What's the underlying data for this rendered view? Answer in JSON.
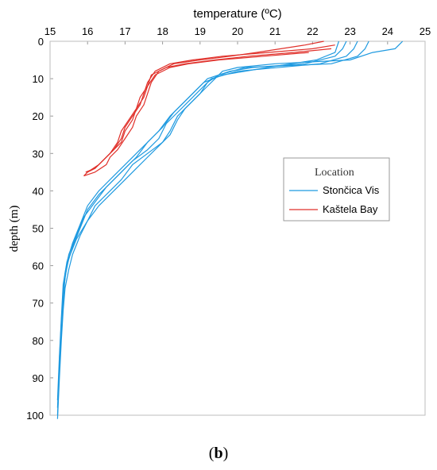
{
  "caption": {
    "open": "(",
    "letter": "b",
    "close": ")"
  },
  "chart_data": {
    "type": "line",
    "title": "",
    "xlabel": "temperature (ºC)",
    "ylabel": "depth (m)",
    "xlim": [
      15,
      25
    ],
    "ylim": [
      0,
      100
    ],
    "y_inverted": true,
    "x_axis_position": "top",
    "x_ticks": [
      15,
      16,
      17,
      18,
      19,
      20,
      21,
      22,
      23,
      24,
      25
    ],
    "y_ticks": [
      0,
      10,
      20,
      30,
      40,
      50,
      60,
      70,
      80,
      90,
      100
    ],
    "grid": false,
    "legend": {
      "title": "Location",
      "placement": "right",
      "entries": [
        "Stončica Vis",
        "Kaštela Bay"
      ]
    },
    "series": [
      {
        "group": "Stončica Vis",
        "color": "#1f9ae0",
        "points": [
          [
            24.4,
            0
          ],
          [
            24.3,
            1
          ],
          [
            24.2,
            2
          ],
          [
            23.6,
            3
          ],
          [
            23.0,
            5
          ],
          [
            21.0,
            6
          ],
          [
            20.0,
            7
          ],
          [
            19.6,
            8
          ],
          [
            19.4,
            10
          ],
          [
            19.2,
            12
          ],
          [
            18.9,
            15
          ],
          [
            18.6,
            18
          ],
          [
            18.4,
            21
          ],
          [
            18.2,
            25
          ],
          [
            17.9,
            28
          ],
          [
            17.6,
            31
          ],
          [
            17.3,
            34
          ],
          [
            17.0,
            37
          ],
          [
            16.7,
            40
          ],
          [
            16.3,
            44
          ],
          [
            16.0,
            48
          ],
          [
            15.8,
            52
          ],
          [
            15.6,
            57
          ],
          [
            15.5,
            61
          ],
          [
            15.4,
            66
          ],
          [
            15.35,
            72
          ],
          [
            15.3,
            80
          ],
          [
            15.25,
            90
          ],
          [
            15.2,
            101
          ]
        ]
      },
      {
        "group": "Stončica Vis",
        "color": "#1f9ae0",
        "points": [
          [
            23.5,
            0
          ],
          [
            23.4,
            2
          ],
          [
            23.2,
            4
          ],
          [
            22.5,
            6
          ],
          [
            20.2,
            7
          ],
          [
            19.5,
            9
          ],
          [
            19.2,
            11
          ],
          [
            19.0,
            14
          ],
          [
            18.7,
            17
          ],
          [
            18.4,
            20
          ],
          [
            18.2,
            24
          ],
          [
            18.0,
            27
          ],
          [
            17.6,
            30
          ],
          [
            17.2,
            33
          ],
          [
            16.9,
            37
          ],
          [
            16.6,
            40
          ],
          [
            16.2,
            44
          ],
          [
            16.0,
            48
          ],
          [
            15.7,
            53
          ],
          [
            15.5,
            58
          ],
          [
            15.4,
            63
          ],
          [
            15.35,
            70
          ],
          [
            15.3,
            78
          ],
          [
            15.25,
            88
          ],
          [
            15.2,
            100
          ]
        ]
      },
      {
        "group": "Stončica Vis",
        "color": "#1f9ae0",
        "points": [
          [
            23.2,
            0
          ],
          [
            23.1,
            2
          ],
          [
            22.9,
            4
          ],
          [
            22.2,
            6
          ],
          [
            20.0,
            8
          ],
          [
            19.3,
            10
          ],
          [
            19.0,
            13
          ],
          [
            18.7,
            16
          ],
          [
            18.4,
            19
          ],
          [
            18.1,
            22
          ],
          [
            17.9,
            26
          ],
          [
            17.6,
            29
          ],
          [
            17.2,
            32
          ],
          [
            16.9,
            35
          ],
          [
            16.5,
            39
          ],
          [
            16.2,
            43
          ],
          [
            15.9,
            47
          ],
          [
            15.7,
            52
          ],
          [
            15.5,
            57
          ],
          [
            15.4,
            62
          ],
          [
            15.35,
            68
          ],
          [
            15.3,
            76
          ],
          [
            15.25,
            86
          ],
          [
            15.2,
            98
          ]
        ]
      },
      {
        "group": "Stončica Vis",
        "color": "#1f9ae0",
        "points": [
          [
            22.9,
            0
          ],
          [
            22.8,
            2
          ],
          [
            22.6,
            4
          ],
          [
            21.8,
            6
          ],
          [
            20.4,
            7
          ],
          [
            19.8,
            8
          ],
          [
            19.2,
            10
          ],
          [
            18.9,
            13
          ],
          [
            18.6,
            16
          ],
          [
            18.3,
            19
          ],
          [
            18.0,
            23
          ],
          [
            17.7,
            26
          ],
          [
            17.4,
            29
          ],
          [
            17.0,
            33
          ],
          [
            16.7,
            36
          ],
          [
            16.3,
            40
          ],
          [
            16.0,
            44
          ],
          [
            15.8,
            49
          ],
          [
            15.6,
            54
          ],
          [
            15.45,
            59
          ],
          [
            15.35,
            65
          ],
          [
            15.3,
            74
          ],
          [
            15.25,
            84
          ],
          [
            15.2,
            96
          ]
        ]
      },
      {
        "group": "Stončica Vis",
        "color": "#1f9ae0",
        "points": [
          [
            22.7,
            0
          ],
          [
            22.6,
            3
          ],
          [
            22.1,
            5
          ],
          [
            20.8,
            7
          ],
          [
            19.6,
            9
          ],
          [
            19.1,
            11
          ],
          [
            18.8,
            14
          ],
          [
            18.5,
            17
          ],
          [
            18.2,
            20
          ],
          [
            17.9,
            24
          ],
          [
            17.6,
            27
          ],
          [
            17.3,
            31
          ],
          [
            17.0,
            34
          ],
          [
            16.6,
            38
          ],
          [
            16.3,
            41
          ],
          [
            16.0,
            45
          ],
          [
            15.8,
            50
          ],
          [
            15.6,
            55
          ],
          [
            15.45,
            60
          ],
          [
            15.35,
            67
          ],
          [
            15.3,
            75
          ],
          [
            15.25,
            85
          ]
        ]
      },
      {
        "group": "Kaštela Bay",
        "color": "#e0302a",
        "points": [
          [
            22.3,
            0
          ],
          [
            21.8,
            1
          ],
          [
            20.5,
            3
          ],
          [
            19.8,
            4
          ],
          [
            19.0,
            5
          ],
          [
            18.3,
            6
          ],
          [
            17.9,
            8
          ],
          [
            17.7,
            11
          ],
          [
            17.6,
            14
          ],
          [
            17.5,
            17
          ],
          [
            17.3,
            20
          ],
          [
            17.2,
            23
          ],
          [
            17.0,
            26
          ],
          [
            16.8,
            29
          ],
          [
            16.6,
            31
          ],
          [
            16.5,
            33
          ],
          [
            16.2,
            35
          ],
          [
            15.9,
            36
          ]
        ]
      },
      {
        "group": "Kaštela Bay",
        "color": "#e0302a",
        "points": [
          [
            22.6,
            1
          ],
          [
            22.0,
            2
          ],
          [
            20.8,
            3
          ],
          [
            19.6,
            4
          ],
          [
            18.8,
            5
          ],
          [
            18.2,
            6
          ],
          [
            17.8,
            8
          ],
          [
            17.6,
            11
          ],
          [
            17.5,
            14
          ],
          [
            17.4,
            17
          ],
          [
            17.2,
            20
          ],
          [
            17.0,
            23
          ],
          [
            16.9,
            26
          ],
          [
            16.7,
            29
          ],
          [
            16.5,
            31
          ],
          [
            16.3,
            33
          ],
          [
            16.0,
            35
          ],
          [
            15.9,
            36
          ]
        ]
      },
      {
        "group": "Kaštela Bay",
        "color": "#e0302a",
        "points": [
          [
            22.5,
            2
          ],
          [
            21.5,
            3
          ],
          [
            20.3,
            4
          ],
          [
            19.4,
            5
          ],
          [
            18.6,
            6
          ],
          [
            18.1,
            7
          ],
          [
            17.7,
            9
          ],
          [
            17.6,
            12
          ],
          [
            17.4,
            15
          ],
          [
            17.3,
            18
          ],
          [
            17.1,
            21
          ],
          [
            16.9,
            24
          ],
          [
            16.8,
            27
          ],
          [
            16.6,
            30
          ],
          [
            16.4,
            32
          ],
          [
            16.2,
            34
          ],
          [
            15.95,
            35
          ]
        ]
      },
      {
        "group": "Kaštela Bay",
        "color": "#e0302a",
        "points": [
          [
            21.9,
            3
          ],
          [
            20.7,
            4
          ],
          [
            19.5,
            5
          ],
          [
            18.7,
            6
          ],
          [
            18.2,
            7
          ],
          [
            17.8,
            9
          ],
          [
            17.6,
            12
          ],
          [
            17.5,
            15
          ],
          [
            17.3,
            18
          ],
          [
            17.2,
            21
          ],
          [
            17.0,
            24
          ],
          [
            16.9,
            27
          ],
          [
            16.6,
            30
          ],
          [
            16.4,
            32
          ],
          [
            16.2,
            34
          ],
          [
            16.0,
            35
          ]
        ]
      }
    ]
  }
}
